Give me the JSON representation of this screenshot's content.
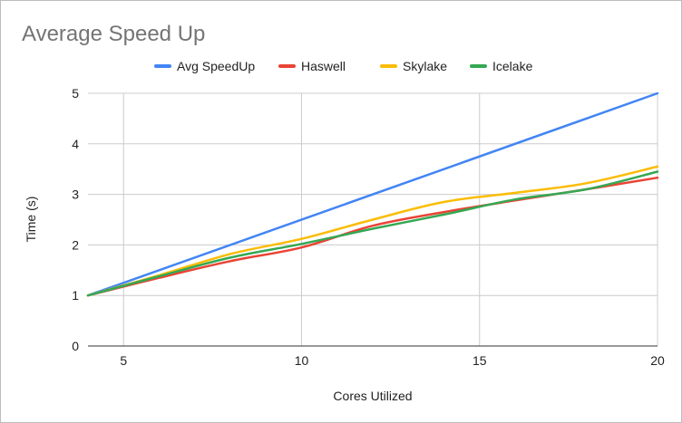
{
  "chart_data": {
    "type": "line",
    "title": "Average Speed Up",
    "xlabel": "Cores Utilized",
    "ylabel": "Time (s)",
    "xlim": [
      4,
      20
    ],
    "ylim": [
      0,
      5
    ],
    "xticks": [
      5,
      10,
      15,
      20
    ],
    "yticks": [
      0,
      1,
      2,
      3,
      4,
      5
    ],
    "grid": true,
    "legend_position": "top",
    "series": [
      {
        "name": "Avg SpeedUp",
        "color": "#4285f4",
        "points": [
          [
            4,
            1.0
          ],
          [
            20,
            5.0
          ]
        ]
      },
      {
        "name": "Haswell",
        "color": "#ea4335",
        "points": [
          [
            4,
            1.0
          ],
          [
            6,
            1.35
          ],
          [
            8,
            1.68
          ],
          [
            10,
            1.95
          ],
          [
            12,
            2.38
          ],
          [
            14,
            2.65
          ],
          [
            16,
            2.88
          ],
          [
            18,
            3.1
          ],
          [
            20,
            3.33
          ]
        ]
      },
      {
        "name": "Skylake",
        "color": "#fbbc04",
        "points": [
          [
            4,
            1.0
          ],
          [
            6,
            1.4
          ],
          [
            8,
            1.82
          ],
          [
            10,
            2.12
          ],
          [
            12,
            2.5
          ],
          [
            14,
            2.85
          ],
          [
            16,
            3.03
          ],
          [
            18,
            3.22
          ],
          [
            20,
            3.55
          ]
        ]
      },
      {
        "name": "Icelake",
        "color": "#34a853",
        "points": [
          [
            4,
            1.0
          ],
          [
            6,
            1.38
          ],
          [
            8,
            1.75
          ],
          [
            10,
            2.02
          ],
          [
            12,
            2.32
          ],
          [
            14,
            2.6
          ],
          [
            16,
            2.9
          ],
          [
            18,
            3.1
          ],
          [
            20,
            3.45
          ]
        ]
      }
    ]
  }
}
